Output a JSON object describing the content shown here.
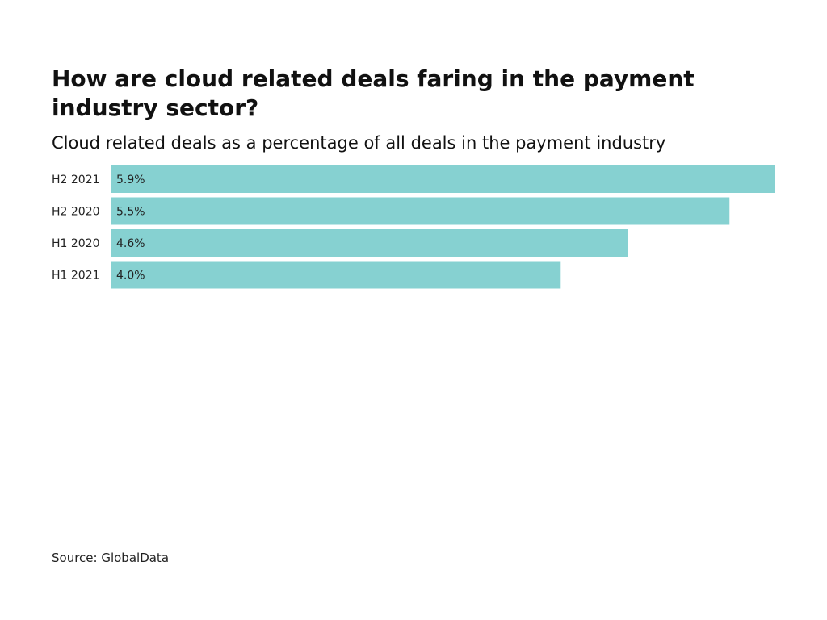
{
  "title": "How are cloud related deals faring in the payment industry sector?",
  "subtitle": "Cloud related deals as a percentage of all deals in the payment industry",
  "source": "Source: GlobalData",
  "colors": {
    "bar": "#86d1d1",
    "label": "#222222",
    "rule": "#d9d9d9"
  },
  "chart_data": {
    "type": "bar",
    "orientation": "horizontal",
    "categories": [
      "H2 2021",
      "H2 2020",
      "H1 2020",
      "H1 2021"
    ],
    "values": [
      5.9,
      5.5,
      4.6,
      4.0
    ],
    "value_labels": [
      "5.9%",
      "5.5%",
      "4.6%",
      "4.0%"
    ],
    "unit": "%",
    "xlim": [
      0,
      5.9
    ],
    "grid": false
  }
}
